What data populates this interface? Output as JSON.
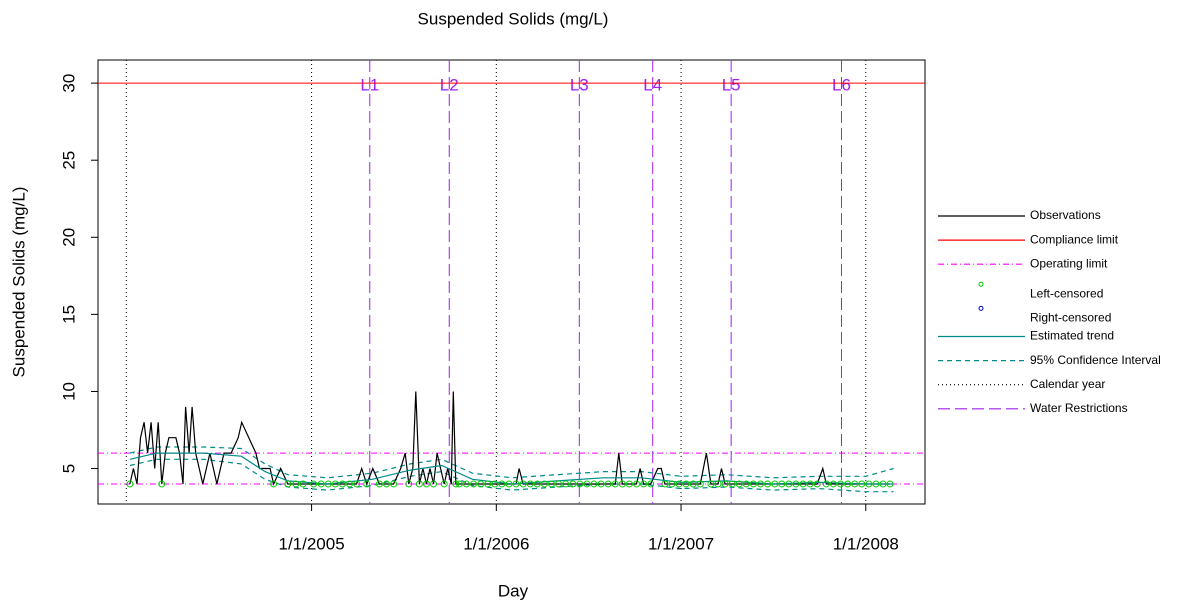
{
  "chart_data": {
    "type": "line",
    "title": "Suspended Solids (mg/L)",
    "x_label": "Day",
    "y_label": "Suspended Solids (mg/L)",
    "xlim": [
      "11/6/2003",
      "4/27/2008"
    ],
    "xticks": [
      "1/1/2005",
      "1/1/2006",
      "1/1/2007",
      "1/1/2008"
    ],
    "ylim": [
      2.7,
      31.5
    ],
    "yticks": [
      5,
      10,
      15,
      20,
      25,
      30
    ],
    "series": [
      {
        "name": "Observations",
        "kind": "line",
        "color": "#000000",
        "x": [
          "1/8/2004",
          "1/15/2004",
          "1/22/2004",
          "1/29/2004",
          "2/5/2004",
          "2/12/2004",
          "2/19/2004",
          "2/26/2004",
          "3/4/2004",
          "3/11/2004",
          "3/18/2004",
          "3/25/2004",
          "4/1/2004",
          "4/8/2004",
          "4/15/2004",
          "4/22/2004",
          "4/27/2004",
          "5/4/2004",
          "5/10/2004",
          "5/17/2004",
          "5/31/2004",
          "6/14/2004",
          "6/28/2004",
          "7/12/2004",
          "7/26/2004",
          "8/9/2004",
          "8/16/2004",
          "8/30/2004",
          "9/13/2004",
          "9/20/2004",
          "10/4/2004",
          "10/11/2004",
          "10/18/2004",
          "11/1/2004",
          "11/15/2004",
          "12/1/2004",
          "12/15/2004",
          "1/5/2005",
          "1/20/2005",
          "2/3/2005",
          "2/17/2005",
          "3/3/2005",
          "3/17/2005",
          "3/31/2005",
          "4/10/2005",
          "4/20/2005",
          "5/2/2005",
          "5/15/2005",
          "5/29/2005",
          "6/12/2005",
          "6/26/2005",
          "7/5/2005",
          "7/12/2005",
          "7/20/2005",
          "7/26/2005",
          "8/2/2005",
          "8/9/2005",
          "8/16/2005",
          "8/23/2005",
          "8/30/2005",
          "9/6/2005",
          "9/13/2005",
          "9/20/2005",
          "9/27/2005",
          "10/4/2005",
          "10/8/2005",
          "10/13/2005",
          "10/20/2005",
          "11/3/2005",
          "11/17/2005",
          "12/1/2005",
          "12/15/2005",
          "12/29/2005",
          "1/12/2006",
          "1/26/2006",
          "2/9/2006",
          "2/15/2006",
          "2/23/2006",
          "3/9/2006",
          "3/23/2006",
          "4/6/2006",
          "4/20/2006",
          "5/4/2006",
          "5/18/2006",
          "6/1/2006",
          "6/15/2006",
          "6/29/2006",
          "7/13/2006",
          "7/27/2006",
          "8/10/2006",
          "8/24/2006",
          "8/31/2006",
          "9/7/2006",
          "9/21/2006",
          "10/5/2006",
          "10/12/2006",
          "10/19/2006",
          "11/2/2006",
          "11/16/2006",
          "11/23/2006",
          "11/30/2006",
          "12/14/2006",
          "12/28/2006",
          "1/11/2007",
          "1/25/2007",
          "2/8/2007",
          "2/20/2007",
          "3/1/2007",
          "3/15/2007",
          "3/22/2007",
          "3/29/2007",
          "4/12/2007",
          "4/26/2007",
          "5/10/2007",
          "5/24/2007",
          "6/7/2007",
          "6/21/2007",
          "7/5/2007",
          "7/19/2007",
          "8/2/2007",
          "8/16/2007",
          "8/30/2007",
          "9/13/2007",
          "9/27/2007",
          "10/8/2007",
          "10/15/2007",
          "10/29/2007",
          "11/12/2007",
          "11/26/2007",
          "12/10/2007",
          "12/24/2007",
          "1/7/2008",
          "1/21/2008",
          "2/4/2008",
          "2/18/2008"
        ],
        "values": [
          4,
          5,
          4,
          7,
          8,
          6,
          8,
          5,
          8,
          4,
          6,
          7,
          7,
          7,
          6,
          4,
          9,
          6,
          9,
          6,
          4,
          6,
          4,
          6,
          6,
          7,
          8,
          7,
          6,
          5,
          5,
          5,
          4,
          5,
          4,
          4,
          4,
          4,
          4,
          4,
          4,
          4,
          4,
          4,
          5,
          4,
          5,
          4,
          4,
          4,
          5,
          6,
          4,
          5,
          10,
          4,
          5,
          4,
          5,
          4,
          6,
          5,
          4,
          5,
          4,
          10,
          4,
          4,
          4,
          4,
          4,
          4,
          4,
          4,
          4,
          4,
          5,
          4,
          4,
          4,
          4,
          4,
          4,
          4,
          4,
          4,
          4,
          4,
          4,
          4,
          4,
          6,
          4,
          4,
          4,
          5,
          4,
          4,
          5,
          5,
          4,
          4,
          4,
          4,
          4,
          4,
          6,
          4,
          4,
          5,
          4,
          4,
          4,
          4,
          4,
          4,
          4,
          4,
          4,
          4,
          4,
          4,
          4,
          4,
          5,
          4,
          4,
          4,
          4,
          4,
          4,
          4,
          4,
          4,
          4
        ]
      },
      {
        "name": "Compliance limit",
        "kind": "hline",
        "color": "#ff0000",
        "dash": "solid",
        "y": [
          30
        ]
      },
      {
        "name": "Operating limit",
        "kind": "hline",
        "color": "#ff00ff",
        "dash": "dashdot",
        "y": [
          4,
          6
        ]
      },
      {
        "name": "Left-censored",
        "kind": "points",
        "color": "#00cc00",
        "x": [
          "1/8/2004",
          "3/11/2004",
          "10/18/2004",
          "11/15/2004",
          "12/1/2004",
          "12/15/2004",
          "1/5/2005",
          "1/20/2005",
          "2/3/2005",
          "2/17/2005",
          "3/3/2005",
          "3/17/2005",
          "3/31/2005",
          "4/20/2005",
          "5/15/2005",
          "5/29/2005",
          "6/12/2005",
          "7/12/2005",
          "8/2/2005",
          "8/16/2005",
          "8/30/2005",
          "9/20/2005",
          "10/13/2005",
          "10/20/2005",
          "11/3/2005",
          "11/17/2005",
          "12/1/2005",
          "12/15/2005",
          "12/29/2005",
          "1/12/2006",
          "1/26/2006",
          "2/9/2006",
          "2/23/2006",
          "3/9/2006",
          "3/23/2006",
          "4/6/2006",
          "4/20/2006",
          "5/4/2006",
          "5/18/2006",
          "6/1/2006",
          "6/15/2006",
          "6/29/2006",
          "7/13/2006",
          "7/27/2006",
          "8/10/2006",
          "8/24/2006",
          "9/7/2006",
          "9/21/2006",
          "10/5/2006",
          "10/19/2006",
          "11/2/2006",
          "11/30/2006",
          "12/14/2006",
          "12/28/2006",
          "1/11/2007",
          "1/25/2007",
          "2/8/2007",
          "3/1/2007",
          "3/15/2007",
          "3/29/2007",
          "4/12/2007",
          "4/26/2007",
          "5/10/2007",
          "5/24/2007",
          "6/7/2007",
          "6/21/2007",
          "7/5/2007",
          "7/19/2007",
          "8/2/2007",
          "8/16/2007",
          "8/30/2007",
          "9/13/2007",
          "9/27/2007",
          "10/15/2007",
          "10/29/2007",
          "11/12/2007",
          "11/26/2007",
          "12/10/2007",
          "12/24/2007",
          "1/7/2008",
          "1/21/2008",
          "2/4/2008",
          "2/18/2008"
        ],
        "values": [
          4,
          4,
          4,
          4,
          4,
          4,
          4,
          4,
          4,
          4,
          4,
          4,
          4,
          4,
          4,
          4,
          4,
          4,
          4,
          4,
          4,
          4,
          4,
          4,
          4,
          4,
          4,
          4,
          4,
          4,
          4,
          4,
          4,
          4,
          4,
          4,
          4,
          4,
          4,
          4,
          4,
          4,
          4,
          4,
          4,
          4,
          4,
          4,
          4,
          4,
          4,
          4,
          4,
          4,
          4,
          4,
          4,
          4,
          4,
          4,
          4,
          4,
          4,
          4,
          4,
          4,
          4,
          4,
          4,
          4,
          4,
          4,
          4,
          4,
          4,
          4,
          4,
          4,
          4,
          4,
          4,
          4,
          4
        ]
      },
      {
        "name": "Right-censored",
        "kind": "points",
        "color": "#0000cc",
        "x": [],
        "values": []
      },
      {
        "name": "Estimated trend",
        "kind": "line",
        "color": "#008b8b",
        "x": [
          "1/8/2004",
          "3/1/2004",
          "6/1/2004",
          "8/15/2004",
          "10/1/2004",
          "11/15/2004",
          "2/1/2005",
          "5/1/2005",
          "7/15/2005",
          "9/15/2005",
          "11/15/2005",
          "2/1/2006",
          "5/1/2006",
          "8/1/2006",
          "10/15/2006",
          "1/1/2007",
          "4/1/2007",
          "7/1/2007",
          "10/1/2007",
          "1/1/2008",
          "2/25/2008"
        ],
        "values": [
          5.6,
          6.0,
          6.0,
          5.8,
          4.8,
          4.2,
          4.0,
          4.3,
          4.9,
          5.2,
          4.3,
          4.0,
          4.2,
          4.4,
          4.4,
          4.1,
          4.2,
          4.0,
          4.1,
          4.0,
          4.0
        ]
      },
      {
        "name": "95% Confidence Interval",
        "kind": "band",
        "color": "#008b8b",
        "dash": "dashed",
        "x": [
          "1/8/2004",
          "3/1/2004",
          "6/1/2004",
          "8/15/2004",
          "10/1/2004",
          "11/15/2004",
          "2/1/2005",
          "5/1/2005",
          "7/15/2005",
          "9/15/2005",
          "11/15/2005",
          "2/1/2006",
          "5/1/2006",
          "8/1/2006",
          "10/15/2006",
          "1/1/2007",
          "4/1/2007",
          "7/1/2007",
          "10/1/2007",
          "1/1/2008",
          "2/25/2008"
        ],
        "upper": [
          6.0,
          6.4,
          6.4,
          6.3,
          5.3,
          4.6,
          4.4,
          4.7,
          5.3,
          5.6,
          4.7,
          4.4,
          4.6,
          4.8,
          4.8,
          4.5,
          4.6,
          4.4,
          4.5,
          4.5,
          5.0
        ],
        "lower": [
          5.2,
          5.6,
          5.6,
          5.3,
          4.3,
          3.8,
          3.6,
          3.9,
          4.5,
          4.8,
          3.9,
          3.6,
          3.8,
          4.0,
          4.0,
          3.7,
          3.8,
          3.6,
          3.7,
          3.5,
          3.5
        ]
      },
      {
        "name": "Calendar year",
        "kind": "vline",
        "color": "#000000",
        "dash": "dotted",
        "x": [
          "1/1/2004",
          "1/1/2005",
          "1/1/2006",
          "1/1/2007",
          "1/1/2008"
        ]
      },
      {
        "name": "Water Restrictions",
        "kind": "vline",
        "color": "#a020f0",
        "dash": "longdash",
        "x": [
          "4/26/2005",
          "9/30/2005",
          "6/14/2006",
          "11/6/2006",
          "4/10/2007",
          "11/14/2007"
        ],
        "labels": [
          "L1",
          "L2",
          "L3",
          "L4",
          "L5",
          "L6"
        ]
      }
    ]
  }
}
